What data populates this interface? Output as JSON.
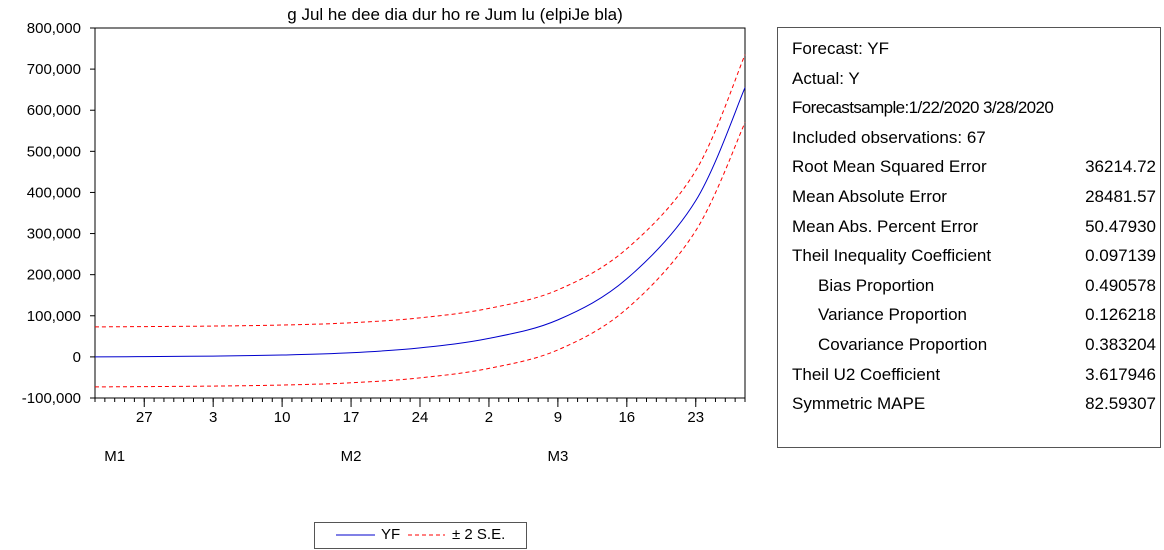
{
  "chart_data": {
    "type": "line",
    "title": "g Jul he dee dia dur ho re Jum lu (elpiJe bla)",
    "y_ticks": [
      800000,
      700000,
      600000,
      500000,
      400000,
      300000,
      200000,
      100000,
      0,
      -100000
    ],
    "y_tick_labels": [
      "800,000",
      "700,000",
      "600,000",
      "500,000",
      "400,000",
      "300,000",
      "200,000",
      "100,000",
      "0",
      "-100,000"
    ],
    "ylim": [
      -100000,
      800000
    ],
    "x_range": [
      "2020-01-22",
      "2020-03-28"
    ],
    "x_ticks": [
      {
        "date": "2020-01-27",
        "label": "27"
      },
      {
        "date": "2020-02-03",
        "label": "3"
      },
      {
        "date": "2020-02-10",
        "label": "10"
      },
      {
        "date": "2020-02-17",
        "label": "17"
      },
      {
        "date": "2020-02-24",
        "label": "24"
      },
      {
        "date": "2020-03-02",
        "label": "2"
      },
      {
        "date": "2020-03-09",
        "label": "9"
      },
      {
        "date": "2020-03-16",
        "label": "16"
      },
      {
        "date": "2020-03-23",
        "label": "23"
      }
    ],
    "month_labels": [
      {
        "date": "2020-01-24",
        "label": "M1"
      },
      {
        "date": "2020-02-17",
        "label": "M2"
      },
      {
        "date": "2020-03-09",
        "label": "M3"
      }
    ],
    "grid": false,
    "series": [
      {
        "name": "YF",
        "style": "solid",
        "color": "#0000cc",
        "x": [
          "2020-01-22",
          "2020-01-27",
          "2020-02-03",
          "2020-02-10",
          "2020-02-17",
          "2020-02-24",
          "2020-03-02",
          "2020-03-09",
          "2020-03-16",
          "2020-03-23",
          "2020-03-28"
        ],
        "values": [
          0,
          700,
          2000,
          4500,
          10000,
          22000,
          45000,
          90000,
          190000,
          380000,
          655000
        ]
      },
      {
        "name": "± 2 S.E.",
        "style": "dashed",
        "color": "#ff0000",
        "bands": [
          {
            "x": [
              "2020-01-22",
              "2020-01-27",
              "2020-02-03",
              "2020-02-10",
              "2020-02-17",
              "2020-02-24",
              "2020-03-02",
              "2020-03-09",
              "2020-03-16",
              "2020-03-23",
              "2020-03-28"
            ],
            "values": [
              73000,
              73700,
              75000,
              77500,
              83000,
              95000,
              118000,
              163000,
              263000,
              453000,
              735000
            ]
          },
          {
            "x": [
              "2020-01-22",
              "2020-01-27",
              "2020-02-03",
              "2020-02-10",
              "2020-02-17",
              "2020-02-24",
              "2020-03-02",
              "2020-03-09",
              "2020-03-16",
              "2020-03-23",
              "2020-03-28"
            ],
            "values": [
              -73000,
              -72300,
              -71000,
              -68500,
              -63000,
              -51000,
              -28000,
              17000,
              117000,
              307000,
              570000
            ]
          }
        ]
      }
    ],
    "legend": {
      "placement": "bottom",
      "entries": [
        {
          "label": "YF",
          "color": "#0000cc",
          "style": "solid"
        },
        {
          "label": "± 2 S.E.",
          "color": "#ff0000",
          "style": "dashed"
        }
      ]
    }
  },
  "stats": {
    "rows": [
      {
        "label": "Forecast: YF",
        "value": ""
      },
      {
        "label": "Actual: Y",
        "value": ""
      },
      {
        "label": "Forecastsample:1/22/2020 3/28/2020",
        "value": ""
      },
      {
        "label": "Included observations: 67",
        "value": ""
      },
      {
        "label": "Root Mean Squared Error",
        "value": "36214.72"
      },
      {
        "label": "Mean Absolute Error",
        "value": "28481.57"
      },
      {
        "label": "Mean Abs. Percent Error",
        "value": "50.47930"
      },
      {
        "label": "Theil Inequality Coefficient",
        "value": "0.097139"
      },
      {
        "label": "Bias Proportion",
        "value": "0.490578",
        "indent": true
      },
      {
        "label": "Variance Proportion",
        "value": "0.126218",
        "indent": true
      },
      {
        "label": "Covariance Proportion",
        "value": "0.383204",
        "indent": true
      },
      {
        "label": "Theil U2 Coefficient",
        "value": "3.617946"
      },
      {
        "label": "Symmetric MAPE",
        "value": "82.59307"
      }
    ]
  }
}
